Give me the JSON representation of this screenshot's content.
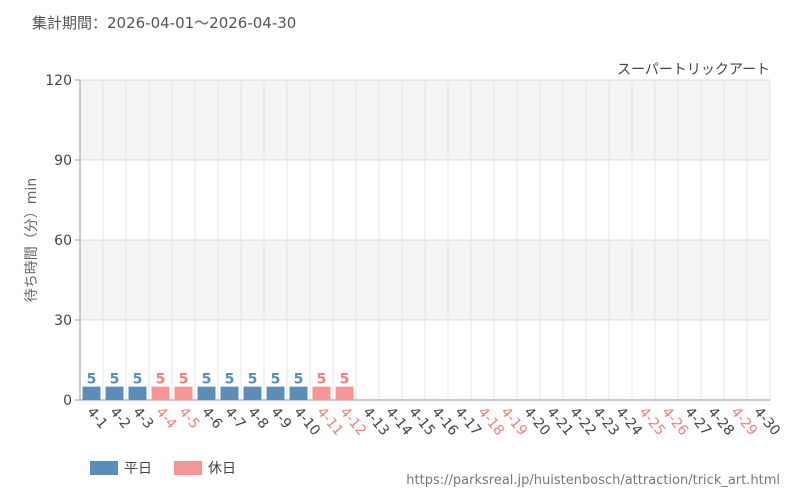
{
  "header": {
    "period_label": "集計期間：2026-04-01～2026-04-30"
  },
  "source_url": "https://parksreal.jp/huistenbosch/attraction/trick_art.html",
  "legend": {
    "items": [
      {
        "label": "平日",
        "color": "#5b8db8"
      },
      {
        "label": "休日",
        "color": "#f59595"
      }
    ]
  },
  "colors": {
    "weekday": "#5b8db8",
    "weekday_label": "#5b8db8",
    "holiday": "#f59595",
    "holiday_label": "#f08080",
    "axis_label": "#444444"
  },
  "chart_data": {
    "type": "bar",
    "title": "スーパートリックアート",
    "ylabel": "待ち時間（分）min",
    "xlabel": "",
    "ylim": [
      0,
      120
    ],
    "yticks": [
      0,
      30,
      60,
      90,
      120
    ],
    "grid": true,
    "legend_position": "bottom-left",
    "categories": [
      "4-1",
      "4-2",
      "4-3",
      "4-4",
      "4-5",
      "4-6",
      "4-7",
      "4-8",
      "4-9",
      "4-10",
      "4-11",
      "4-12",
      "4-13",
      "4-14",
      "4-15",
      "4-16",
      "4-17",
      "4-18",
      "4-19",
      "4-20",
      "4-21",
      "4-22",
      "4-23",
      "4-24",
      "4-25",
      "4-26",
      "4-27",
      "4-28",
      "4-29",
      "4-30"
    ],
    "day_types": [
      "weekday",
      "weekday",
      "weekday",
      "holiday",
      "holiday",
      "weekday",
      "weekday",
      "weekday",
      "weekday",
      "weekday",
      "holiday",
      "holiday",
      "weekday",
      "weekday",
      "weekday",
      "weekday",
      "weekday",
      "holiday",
      "holiday",
      "weekday",
      "weekday",
      "weekday",
      "weekday",
      "weekday",
      "holiday",
      "holiday",
      "weekday",
      "weekday",
      "holiday",
      "weekday"
    ],
    "values": [
      5,
      5,
      5,
      5,
      5,
      5,
      5,
      5,
      5,
      5,
      5,
      5,
      null,
      null,
      null,
      null,
      null,
      null,
      null,
      null,
      null,
      null,
      null,
      null,
      null,
      null,
      null,
      null,
      null,
      null
    ]
  }
}
